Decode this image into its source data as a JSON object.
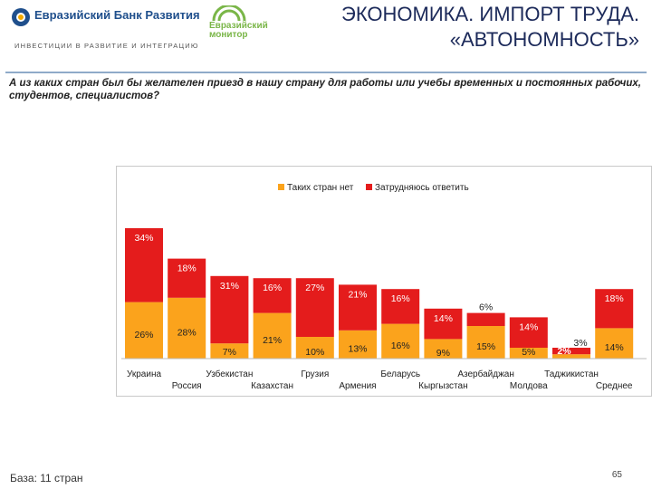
{
  "header": {
    "bank_name": "Евразийский Банк Развития",
    "bank_tagline": "ИНВЕСТИЦИИ В РАЗВИТИЕ И ИНТЕГРАЦИЮ",
    "monitor_line1": "Евразийский",
    "monitor_line2": "монитор",
    "title_line1": "ЭКОНОМИКА. ИМПОРТ ТРУДА.",
    "title_line2": "«АВТОНОМНОСТЬ»"
  },
  "question": "А из каких стран был бы желателен приезд в нашу страну для работы или учебы временных и постоянных рабочих, студентов, специалистов?",
  "footer": {
    "base_note": "База: 11 стран",
    "page_number": "65"
  },
  "colors": {
    "orange": "#fba31c",
    "red": "#e41c1c",
    "brand_blue": "#1f4f8c",
    "brand_green": "#7ab648"
  },
  "chart_data": {
    "type": "bar",
    "stacked": true,
    "unit": "%",
    "categories": [
      "Украина",
      "Россия",
      "Узбекистан",
      "Казахстан",
      "Грузия",
      "Армения",
      "Беларусь",
      "Кыргызстан",
      "Азербайджан",
      "Молдова",
      "Таджикистан",
      "Среднее"
    ],
    "series": [
      {
        "name": "Таких стран нет",
        "color": "#fba31c",
        "values": [
          26,
          28,
          7,
          21,
          10,
          13,
          16,
          9,
          15,
          5,
          2,
          14
        ]
      },
      {
        "name": "Затрудняюсь ответить",
        "color": "#e41c1c",
        "values": [
          34,
          18,
          31,
          16,
          27,
          21,
          16,
          14,
          6,
          14,
          3,
          18
        ]
      }
    ],
    "legend_position": "top-center",
    "ylim": [
      0,
      60
    ]
  }
}
